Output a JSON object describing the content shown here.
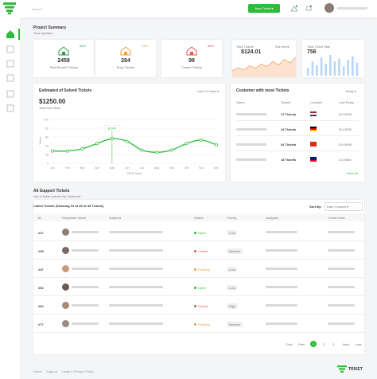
{
  "header": {
    "search": "Search",
    "new_ticket": "New Ticket"
  },
  "summary": {
    "title": "Project Summary",
    "subtitle": "Your Updates",
    "cards": [
      {
        "value": "2458",
        "label": "Total Recent Tickets",
        "change": "62%",
        "color": "#2e9e47"
      },
      {
        "value": "284",
        "label": "Busy Tickets",
        "change": "24%",
        "color": "#e8a23a"
      },
      {
        "value": "98",
        "label": "Closed Tickets",
        "change": "88%",
        "color": "#e05a4e"
      }
    ],
    "sale_card": {
      "label": "Total Tickets",
      "period": "This Week",
      "value": "$124.01",
      "spark": [
        20,
        32,
        24,
        40,
        30,
        46,
        36,
        55,
        42,
        62,
        50,
        70
      ]
    },
    "bar_card": {
      "label": "Total Ticket Sale",
      "value": "756",
      "bars": [
        30,
        55,
        40,
        70,
        45,
        80,
        55,
        65,
        35,
        60,
        75,
        50
      ]
    }
  },
  "estimate": {
    "title": "Estimated of Solved Tickets",
    "filter": "Last 12 Years",
    "value": "$1250.00",
    "caption": "Total New Sale",
    "tooltip": "$1000",
    "y_label": "Ticket",
    "x_label": "2018 Years",
    "months": [
      "Jan",
      "Feb",
      "Mar",
      "Apr",
      "May",
      "Jun",
      "Jul",
      "Aug",
      "Sep",
      "Oct",
      "Nov",
      "Dec"
    ],
    "values": [
      28,
      28,
      33,
      45,
      56,
      50,
      30,
      25,
      30,
      45,
      53,
      42
    ],
    "ylim": [
      0,
      100
    ],
    "yticks": [
      0,
      20,
      40,
      60,
      80,
      100
    ]
  },
  "customers": {
    "title": "Customer with most Tickets",
    "filter": "Today",
    "columns": [
      "Name",
      "Tickets",
      "Location",
      "Last Reply"
    ],
    "rows": [
      {
        "tickets": "17 Tickets",
        "reply": "01:02PM"
      },
      {
        "tickets": "24 Tickets",
        "reply": "02:20PM"
      },
      {
        "tickets": "26 Tickets",
        "reply": "03:45PM"
      },
      {
        "tickets": "18 Tickets",
        "reply": "11:28AM"
      }
    ],
    "view_all": "View All"
  },
  "tickets": {
    "title": "All Support Tickets",
    "subtitle": "List of ticket opened by Customer",
    "latest": "Latest Tickets (Showing 01 to 08 of 48 Tickets)",
    "sort_label": "Sort By:",
    "sort_value": "Date Created",
    "columns": [
      "ID",
      "Requester Name",
      "Subjects",
      "Status",
      "Priority",
      "Assignee",
      "Create Date"
    ],
    "rows": [
      {
        "id": "#27",
        "status": "Open",
        "priority": "Low"
      },
      {
        "id": "#39",
        "status": "Closed",
        "priority": "Medium"
      },
      {
        "id": "#47",
        "status": "Pending",
        "priority": "Low"
      },
      {
        "id": "#52",
        "status": "Open",
        "priority": "Low"
      },
      {
        "id": "#62",
        "status": "Closed",
        "priority": "High"
      },
      {
        "id": "#77",
        "status": "Pending",
        "priority": "Medium"
      }
    ],
    "pagination": [
      "First",
      "Prev",
      "1",
      "2",
      "3",
      "Next",
      "Last"
    ]
  },
  "footer": {
    "links": [
      "Home",
      "Support",
      "Legal & Privacy Policy"
    ],
    "brand": "TRIXET"
  }
}
